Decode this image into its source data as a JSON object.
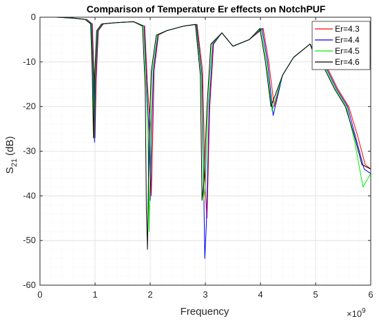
{
  "chart_data": {
    "type": "line",
    "title": "Comparison of Temperature Er effects on NotchPUF",
    "xlabel": "Frequency",
    "ylabel_main": "S",
    "ylabel_sub": "21",
    "ylabel_unit": " (dB)",
    "x_exponent_base": "×10",
    "x_exponent_power": "9",
    "xlim": [
      0,
      6
    ],
    "ylim": [
      -60,
      0
    ],
    "xticks": [
      0,
      1,
      2,
      3,
      4,
      5,
      6
    ],
    "yticks": [
      0,
      -10,
      -20,
      -30,
      -40,
      -50,
      -60
    ],
    "grid": true,
    "legend_position": "top-right",
    "series": [
      {
        "name": "Er=4.3",
        "color": "#ff0000",
        "x": [
          0,
          0.3,
          0.6,
          0.85,
          0.95,
          0.98,
          1.0,
          1.02,
          1.06,
          1.15,
          1.4,
          1.7,
          1.9,
          1.95,
          2.0,
          2.02,
          2.05,
          2.07,
          2.15,
          2.3,
          2.6,
          2.85,
          2.95,
          3.0,
          3.03,
          3.08,
          3.15,
          3.3,
          3.5,
          3.8,
          4.05,
          4.15,
          4.25,
          4.4,
          4.6,
          4.9,
          5.05,
          5.2,
          5.4,
          5.6,
          5.75,
          5.9,
          6.0
        ],
        "y": [
          0,
          0,
          -0.2,
          -0.5,
          -1.5,
          -12,
          -27,
          -14,
          -3,
          -1.5,
          -1.2,
          -1,
          -2,
          -15,
          -24,
          -40,
          -25,
          -12,
          -4,
          -3,
          -2,
          -1.6,
          -12,
          -39,
          -45,
          -20,
          -6,
          -3.5,
          -6.5,
          -5,
          -2.5,
          -10,
          -20,
          -13,
          -9,
          -6,
          -9,
          -11,
          -16,
          -20,
          -26,
          -33,
          -34
        ]
      },
      {
        "name": "Er=4.4",
        "color": "#0000ff",
        "x": [
          0,
          0.3,
          0.6,
          0.84,
          0.94,
          0.97,
          0.99,
          1.01,
          1.05,
          1.14,
          1.4,
          1.7,
          1.89,
          1.94,
          1.98,
          2.0,
          2.03,
          2.06,
          2.14,
          2.3,
          2.6,
          2.84,
          2.94,
          2.99,
          3.02,
          3.07,
          3.14,
          3.3,
          3.5,
          3.8,
          4.03,
          4.13,
          4.23,
          4.4,
          4.6,
          4.9,
          5.03,
          5.18,
          5.38,
          5.58,
          5.73,
          5.88,
          6.0
        ],
        "y": [
          0,
          0,
          -0.2,
          -0.5,
          -1.5,
          -13,
          -28,
          -14,
          -3,
          -1.5,
          -1.2,
          -1,
          -2,
          -16,
          -26,
          -41,
          -25,
          -12,
          -4,
          -3,
          -2,
          -1.6,
          -13,
          -54,
          -46,
          -20,
          -6,
          -3.5,
          -6.5,
          -5,
          -2.5,
          -10,
          -22,
          -13,
          -9,
          -6,
          -9,
          -11,
          -16,
          -20,
          -27,
          -34,
          -35
        ]
      },
      {
        "name": "Er=4.5",
        "color": "#00ee00",
        "x": [
          0,
          0.3,
          0.6,
          0.83,
          0.93,
          0.96,
          0.98,
          1.0,
          1.04,
          1.13,
          1.4,
          1.7,
          1.88,
          1.93,
          1.96,
          1.98,
          2.01,
          2.04,
          2.13,
          2.3,
          2.6,
          2.83,
          2.93,
          2.97,
          3.0,
          3.05,
          3.12,
          3.3,
          3.5,
          3.8,
          4.01,
          4.11,
          4.21,
          4.4,
          4.6,
          4.9,
          5.01,
          5.16,
          5.36,
          5.56,
          5.71,
          5.86,
          6.0
        ],
        "y": [
          0,
          0,
          -0.2,
          -0.5,
          -1.5,
          -13,
          -27,
          -14,
          -3,
          -1.5,
          -1.2,
          -1,
          -2,
          -16,
          -27,
          -48,
          -25,
          -12,
          -4,
          -3,
          -2,
          -1.6,
          -13,
          -41,
          -38,
          -20,
          -6,
          -3.5,
          -6.5,
          -5,
          -2.5,
          -10,
          -21,
          -13,
          -9,
          -6,
          -9,
          -11,
          -16,
          -20,
          -28,
          -38,
          -35
        ]
      },
      {
        "name": "Er=4.6",
        "color": "#000000",
        "x": [
          0,
          0.3,
          0.6,
          0.82,
          0.92,
          0.95,
          0.97,
          0.99,
          1.03,
          1.12,
          1.4,
          1.7,
          1.86,
          1.91,
          1.93,
          1.95,
          1.98,
          2.02,
          2.11,
          2.3,
          2.6,
          2.82,
          2.91,
          2.94,
          2.98,
          3.03,
          3.1,
          3.3,
          3.5,
          3.8,
          3.99,
          4.09,
          4.19,
          4.4,
          4.6,
          4.9,
          4.99,
          5.14,
          5.34,
          5.54,
          5.69,
          5.84,
          6.0
        ],
        "y": [
          0,
          0,
          -0.2,
          -0.5,
          -1.5,
          -13,
          -27,
          -14,
          -3,
          -1.5,
          -1.2,
          -1,
          -2,
          -16,
          -43,
          -52,
          -26,
          -12,
          -4,
          -3,
          -2,
          -1.6,
          -13,
          -41,
          -36,
          -20,
          -6,
          -3.5,
          -6.5,
          -5,
          -2.5,
          -10,
          -20,
          -13,
          -9,
          -6,
          -9,
          -11,
          -16,
          -20,
          -26,
          -33,
          -34
        ]
      }
    ]
  }
}
